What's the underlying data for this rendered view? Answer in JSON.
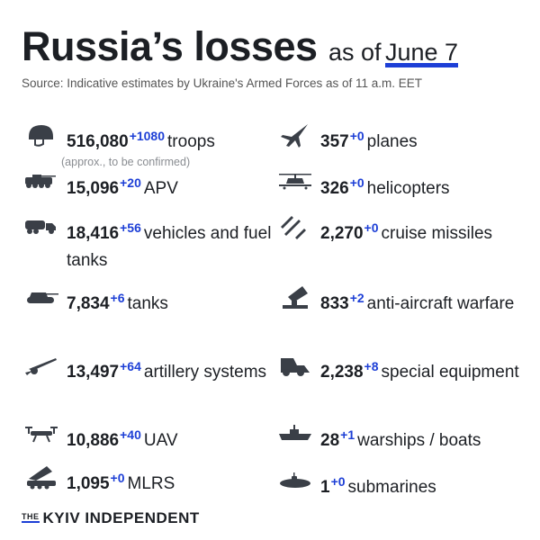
{
  "header": {
    "title": "Russia’s losses",
    "as_of": "as of",
    "date": "June 7"
  },
  "source": "Source: Indicative estimates by Ukraine's Armed Forces as of 11 a.m. EET",
  "left": [
    {
      "icon": "helmet-icon",
      "value": "516,080",
      "delta": "+1080",
      "label": "troops",
      "note": "(approx., to be confirmed)"
    },
    {
      "icon": "apv-icon",
      "value": "15,096",
      "delta": "+20",
      "label": "APV"
    },
    {
      "icon": "truck-icon",
      "value": "18,416",
      "delta": "+56",
      "label": "vehicles and fuel tanks"
    },
    {
      "icon": "tank-icon",
      "value": "7,834",
      "delta": "+6",
      "label": "tanks"
    },
    {
      "icon": "artillery-icon",
      "value": "13,497",
      "delta": "+64",
      "label": "artillery systems"
    },
    {
      "icon": "drone-icon",
      "value": "10,886",
      "delta": "+40",
      "label": "UAV"
    },
    {
      "icon": "mlrs-icon",
      "value": "1,095",
      "delta": "+0",
      "label": "MLRS"
    }
  ],
  "right": [
    {
      "icon": "plane-icon",
      "value": "357",
      "delta": "+0",
      "label": "planes"
    },
    {
      "icon": "helicopter-icon",
      "value": "326",
      "delta": "+0",
      "label": "helicopters"
    },
    {
      "icon": "missile-icon",
      "value": "2,270",
      "delta": "+0",
      "label": "cruise missiles"
    },
    {
      "icon": "anti-aircraft-icon",
      "value": "833",
      "delta": "+2",
      "label": "anti-aircraft warfare"
    },
    {
      "icon": "bulldozer-icon",
      "value": "2,238",
      "delta": "+8",
      "label": "special equipment"
    },
    {
      "icon": "warship-icon",
      "value": "28",
      "delta": "+1",
      "label": "warships / boats"
    },
    {
      "icon": "submarine-icon",
      "value": "1",
      "delta": "+0",
      "label": "submarines"
    }
  ],
  "footer": {
    "logo": "THE KYIV INDEPENDENT"
  }
}
